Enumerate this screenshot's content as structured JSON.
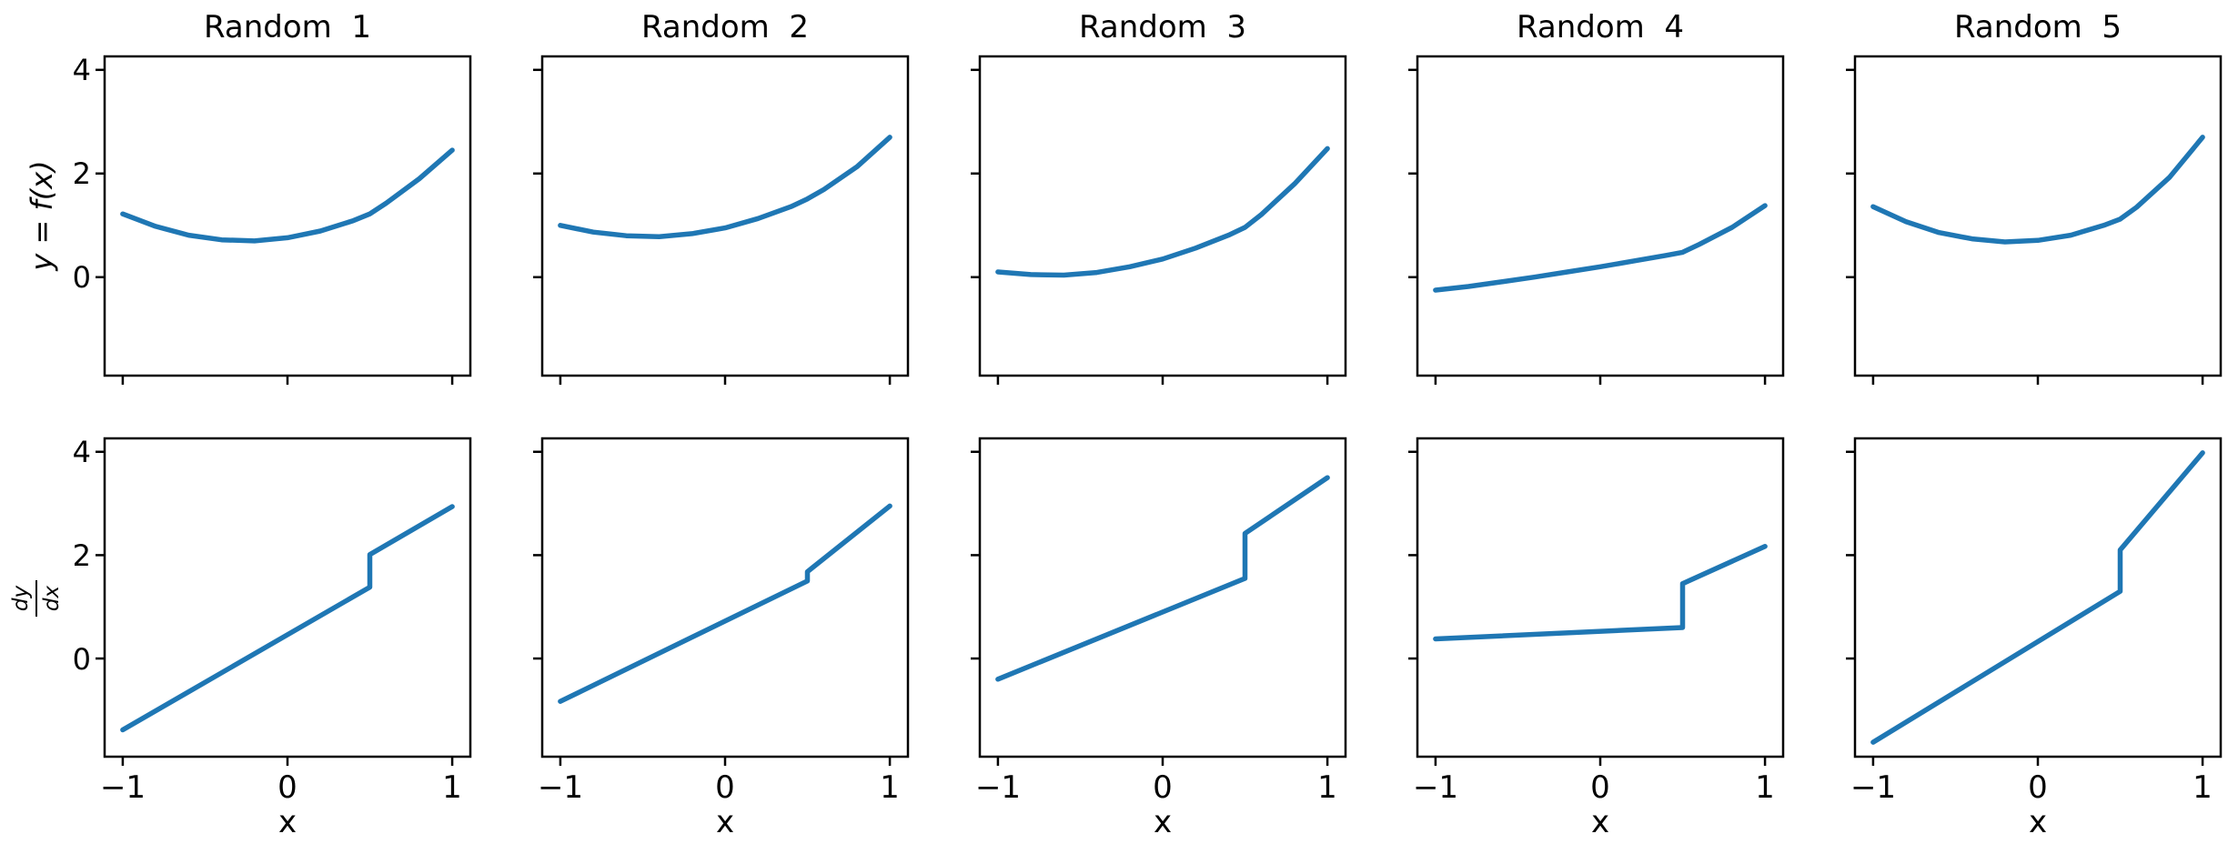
{
  "figure": {
    "background": "#ffffff",
    "line_color": "#1f77b4",
    "spine_color": "#000000",
    "xlabel": "x",
    "ylabel_top": "y = f(x)",
    "dydx": {
      "num": "dy",
      "den": "dx"
    },
    "xlim": [
      -1.11,
      1.11
    ],
    "ylim": [
      -1.9,
      4.26
    ],
    "xticks": {
      "values": [
        -1,
        0,
        1
      ],
      "labels": [
        "−1",
        "0",
        "1"
      ]
    },
    "yticks": {
      "values": [
        4,
        2,
        0
      ],
      "display": [
        "4",
        "2",
        "0"
      ]
    },
    "grid": false,
    "legend": null
  },
  "chart_data": [
    {
      "type": "line",
      "row": 0,
      "col": 0,
      "title": "Random  1",
      "series": "f(x)",
      "x": [
        -1,
        -0.8,
        -0.6,
        -0.4,
        -0.2,
        0,
        0.2,
        0.4,
        0.5,
        0.6,
        0.8,
        1
      ],
      "y": [
        1.22,
        0.98,
        0.81,
        0.72,
        0.7,
        0.76,
        0.89,
        1.09,
        1.22,
        1.43,
        1.9,
        2.45
      ]
    },
    {
      "type": "line",
      "row": 0,
      "col": 1,
      "title": "Random  2",
      "series": "f(x)",
      "x": [
        -1,
        -0.8,
        -0.6,
        -0.4,
        -0.2,
        0,
        0.2,
        0.4,
        0.5,
        0.6,
        0.8,
        1
      ],
      "y": [
        1.0,
        0.87,
        0.8,
        0.78,
        0.84,
        0.95,
        1.13,
        1.36,
        1.51,
        1.69,
        2.13,
        2.7
      ]
    },
    {
      "type": "line",
      "row": 0,
      "col": 2,
      "title": "Random  3",
      "series": "f(x)",
      "x": [
        -1,
        -0.8,
        -0.6,
        -0.4,
        -0.2,
        0,
        0.2,
        0.4,
        0.5,
        0.6,
        0.8,
        1
      ],
      "y": [
        0.1,
        0.05,
        0.04,
        0.09,
        0.2,
        0.35,
        0.56,
        0.81,
        0.96,
        1.21,
        1.8,
        2.48
      ]
    },
    {
      "type": "line",
      "row": 0,
      "col": 3,
      "title": "Random  4",
      "series": "f(x)",
      "x": [
        -1,
        -0.8,
        -0.6,
        -0.4,
        -0.2,
        0,
        0.2,
        0.4,
        0.5,
        0.6,
        0.8,
        1
      ],
      "y": [
        -0.25,
        -0.18,
        -0.09,
        0.0,
        0.1,
        0.2,
        0.31,
        0.42,
        0.48,
        0.63,
        0.96,
        1.38
      ]
    },
    {
      "type": "line",
      "row": 0,
      "col": 4,
      "title": "Random  5",
      "series": "f(x)",
      "x": [
        -1,
        -0.8,
        -0.6,
        -0.4,
        -0.2,
        0,
        0.2,
        0.4,
        0.5,
        0.6,
        0.8,
        1
      ],
      "y": [
        1.36,
        1.07,
        0.86,
        0.74,
        0.68,
        0.71,
        0.81,
        1.0,
        1.12,
        1.35,
        1.93,
        2.7
      ]
    },
    {
      "type": "line",
      "row": 1,
      "col": 0,
      "series": "dy/dx",
      "x": [
        -1,
        0.5,
        0.5,
        1
      ],
      "y": [
        -1.38,
        1.38,
        2.01,
        2.94
      ]
    },
    {
      "type": "line",
      "row": 1,
      "col": 1,
      "series": "dy/dx",
      "x": [
        -1,
        0.5,
        0.5,
        1
      ],
      "y": [
        -0.83,
        1.5,
        1.68,
        2.95
      ]
    },
    {
      "type": "line",
      "row": 1,
      "col": 2,
      "series": "dy/dx",
      "x": [
        -1,
        0.5,
        0.5,
        1
      ],
      "y": [
        -0.4,
        1.55,
        2.42,
        3.5
      ]
    },
    {
      "type": "line",
      "row": 1,
      "col": 3,
      "series": "dy/dx",
      "x": [
        -1,
        0.5,
        0.5,
        1
      ],
      "y": [
        0.38,
        0.6,
        1.45,
        2.17
      ]
    },
    {
      "type": "line",
      "row": 1,
      "col": 4,
      "series": "dy/dx",
      "x": [
        -1,
        0.5,
        0.5,
        1
      ],
      "y": [
        -1.62,
        1.3,
        2.1,
        3.98
      ]
    }
  ]
}
